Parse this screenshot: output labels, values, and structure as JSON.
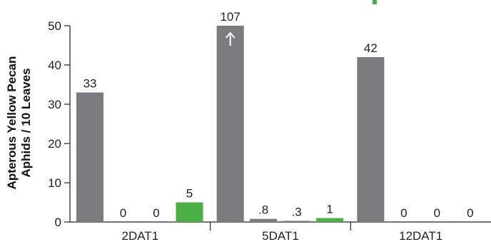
{
  "chart_data": {
    "type": "bar",
    "ylabel_lines": [
      "Apterous Yellow Pecan",
      "Aphids / 10 Leaves"
    ],
    "ylim": [
      0,
      50
    ],
    "yticks": [
      0,
      10,
      20,
      30,
      40,
      50
    ],
    "categories": [
      "2DAT1",
      "5DAT1",
      "12DAT1"
    ],
    "bars_per_group": 4,
    "colors": {
      "gray": "#7b7b7d",
      "green": "#4caf45",
      "axis": "#222222"
    },
    "values": [
      [
        33,
        0,
        0,
        5
      ],
      [
        50,
        0.8,
        0.3,
        1
      ],
      [
        42,
        0,
        0,
        0
      ]
    ],
    "bar_colors": [
      [
        "gray",
        "gray",
        "gray",
        "green"
      ],
      [
        "gray",
        "gray",
        "gray",
        "green"
      ],
      [
        "gray",
        "gray",
        "gray",
        "green"
      ]
    ],
    "data_labels": [
      [
        "33",
        "0",
        "0",
        "5"
      ],
      [
        "107",
        ".8",
        ".3",
        "1"
      ],
      [
        "42",
        "0",
        "0",
        "0"
      ]
    ],
    "truncated": [
      [
        false,
        false,
        false,
        false
      ],
      [
        true,
        false,
        false,
        false
      ],
      [
        false,
        false,
        false,
        false
      ]
    ],
    "truncation_marker": "arrow-up"
  }
}
